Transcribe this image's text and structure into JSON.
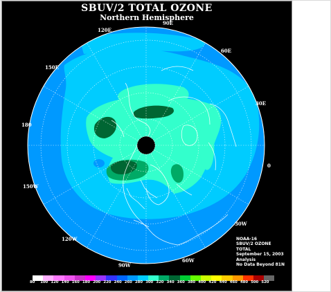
{
  "title": "SBUV/2 TOTAL OZONE",
  "subtitle": "Northern Hemisphere",
  "longitude_labels": [
    "90E",
    "60E",
    "30E",
    "0",
    "30W",
    "60W",
    "90W",
    "120W",
    "150W",
    "180",
    "150E",
    "120E"
  ],
  "info": {
    "satellite": "NOAA-16",
    "instrument": "SBUV/2 OZONE",
    "quantity": "TOTAL",
    "date": "September 15, 2003",
    "product": "Analysis",
    "note": "No Data Beyond 81N"
  },
  "colorbar": {
    "labels": [
      "80",
      "100",
      "120",
      "140",
      "160",
      "180",
      "200",
      "220",
      "240",
      "260",
      "280",
      "300",
      "320",
      "340",
      "360",
      "380",
      "400",
      "420",
      "440",
      "460",
      "480",
      "500",
      "520"
    ],
    "colors": [
      "#ffffff",
      "#ffb0ff",
      "#ff7aff",
      "#ee55ee",
      "#cc33cc",
      "#ff00ff",
      "#9933ff",
      "#3333ff",
      "#0066ff",
      "#0099ff",
      "#00ccff",
      "#33ffcc",
      "#00aa66",
      "#006633",
      "#00cc33",
      "#66ff00",
      "#ccff00",
      "#ffff00",
      "#ffcc00",
      "#ff9900",
      "#ff3300",
      "#aa0000",
      "#666666"
    ]
  },
  "colors": {
    "background": "#000000",
    "ozone_260": "#0099ff",
    "ozone_280": "#00ccff",
    "ozone_300": "#33ffcc",
    "ozone_320": "#00aa66",
    "ozone_340": "#006633",
    "no_data": "#000000"
  }
}
